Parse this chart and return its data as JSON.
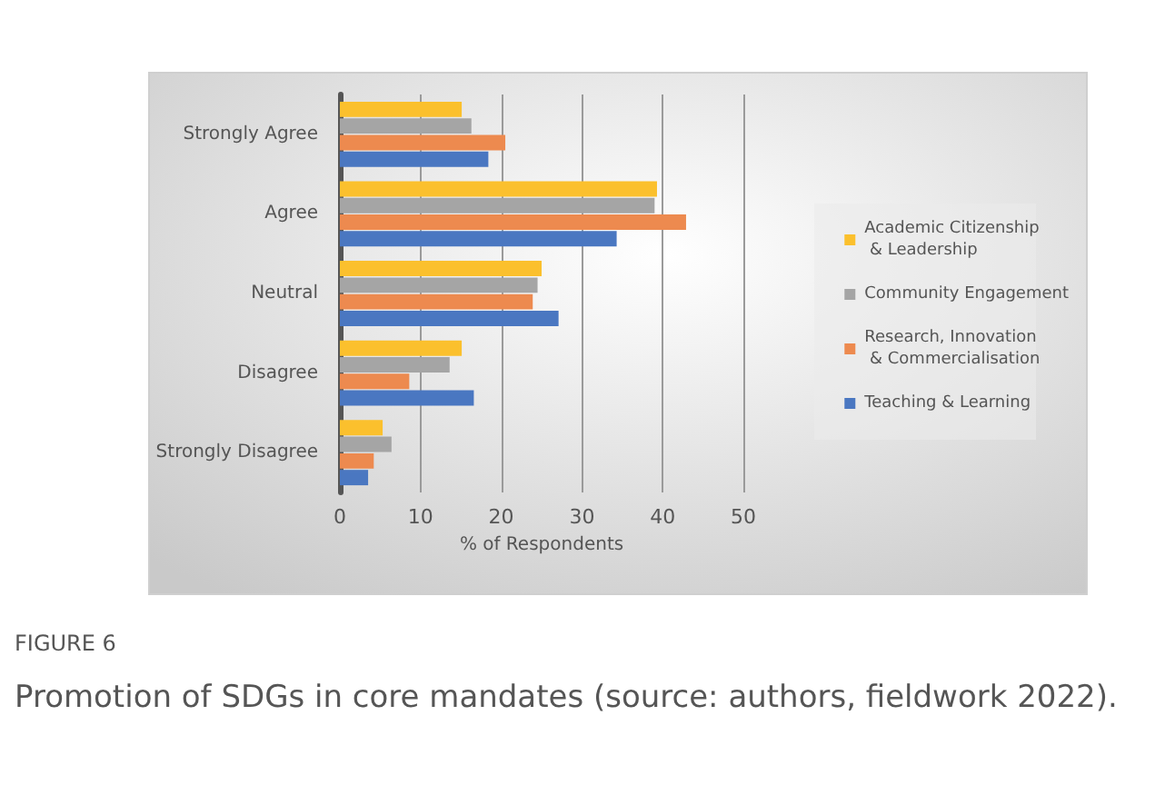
{
  "chart_data": {
    "type": "bar",
    "orientation": "horizontal",
    "title": "FIGURE 6",
    "subtitle": "Promotion of SDGs in core mandates (source: authors, fieldwork 2022).",
    "xlabel": "% of Respondents",
    "categories": [
      "Strongly Agree",
      "Agree",
      "Neutral",
      "Disagree",
      "Strongly Disagree"
    ],
    "series": [
      {
        "name": "Academic Citizenship & Leadership",
        "color": "#fbc02d",
        "values": [
          15.1,
          39.3,
          25.0,
          15.1,
          5.3
        ]
      },
      {
        "name": "Community Engagement",
        "color": "#a5a5a5",
        "values": [
          16.3,
          39.0,
          24.5,
          13.6,
          6.4
        ]
      },
      {
        "name": "Research, Innovation & Commercialisation",
        "color": "#ed8a4f",
        "values": [
          20.5,
          42.9,
          23.9,
          8.6,
          4.2
        ]
      },
      {
        "name": "Teaching & Learning",
        "color": "#4a77c1",
        "values": [
          18.4,
          34.3,
          27.1,
          16.6,
          3.5
        ]
      }
    ],
    "xlim": [
      0,
      50
    ],
    "xticks": [
      0,
      10,
      20,
      30,
      40,
      50
    ],
    "grid": "x",
    "legend": "right"
  }
}
